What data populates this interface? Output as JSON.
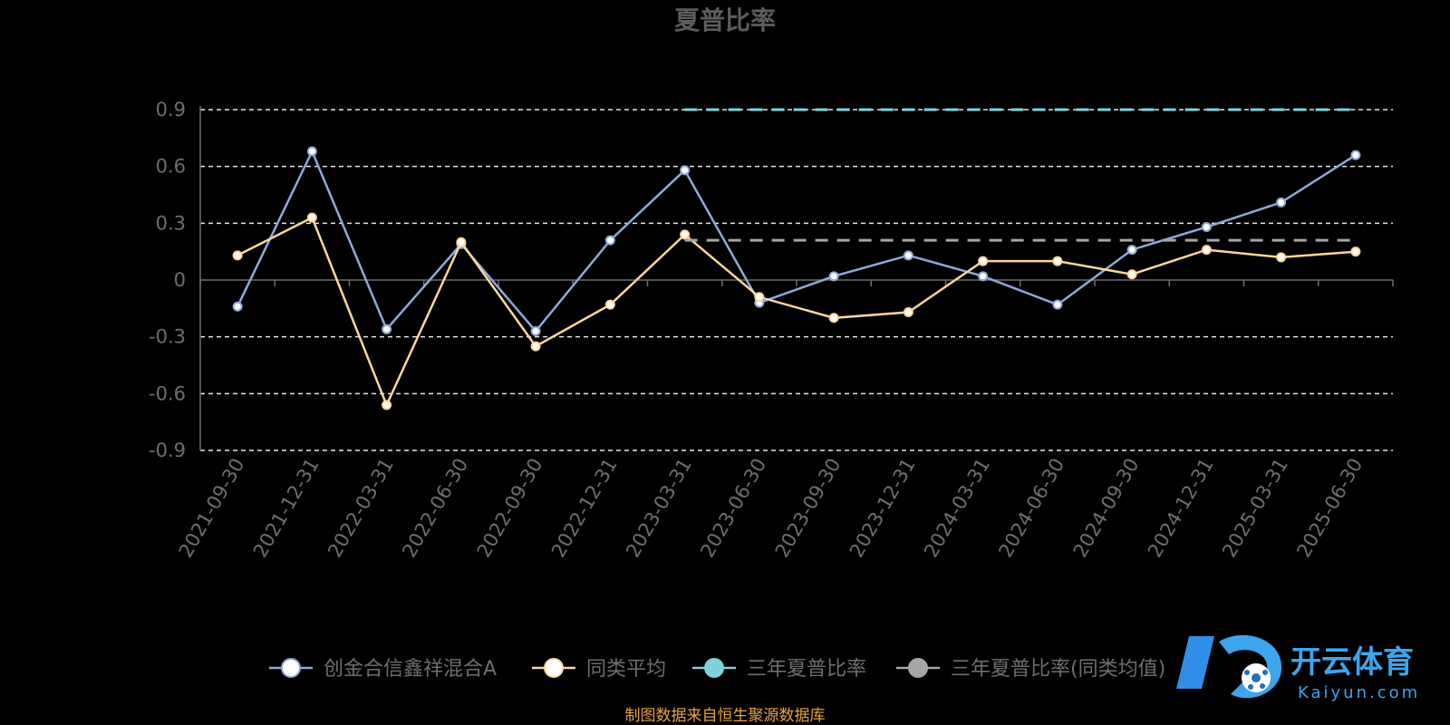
{
  "chart_data": {
    "type": "line",
    "title": "夏普比率",
    "x": [
      "2021-09-30",
      "2021-12-31",
      "2022-03-31",
      "2022-06-30",
      "2022-09-30",
      "2022-12-31",
      "2023-03-31",
      "2023-06-30",
      "2023-09-30",
      "2023-12-31",
      "2024-03-31",
      "2024-06-30",
      "2024-09-30",
      "2024-12-31",
      "2025-03-31",
      "2025-06-30"
    ],
    "y_ticks": [
      "0.9",
      "0.6",
      "0.3",
      "0",
      "-0.3",
      "-0.6",
      "-0.9"
    ],
    "ylim": [
      -0.9,
      0.9
    ],
    "grid": true,
    "legend_position": "bottom",
    "series": [
      {
        "name": "创金合信鑫祥混合A",
        "color": "#8fa9d9",
        "values": [
          -0.14,
          0.68,
          -0.26,
          0.19,
          -0.27,
          0.21,
          0.58,
          -0.12,
          0.02,
          0.13,
          0.02,
          -0.13,
          0.16,
          0.28,
          0.41,
          0.66
        ]
      },
      {
        "name": "同类平均",
        "color": "#fcd798",
        "values": [
          0.13,
          0.33,
          -0.66,
          0.2,
          -0.35,
          -0.13,
          0.24,
          -0.09,
          -0.2,
          -0.17,
          0.1,
          0.1,
          0.03,
          0.16,
          0.12,
          0.15
        ]
      },
      {
        "name": "三年夏普比率",
        "color": "#7fd1dd",
        "dashed": true,
        "values": [
          null,
          null,
          null,
          null,
          null,
          null,
          0.9,
          0.9,
          0.9,
          0.9,
          0.9,
          0.9,
          0.9,
          0.9,
          0.9,
          0.9
        ]
      },
      {
        "name": "三年夏普比率(同类均值)",
        "color": "#a6a6a6",
        "dashed": true,
        "values": [
          null,
          null,
          null,
          null,
          null,
          null,
          0.21,
          0.21,
          0.21,
          0.21,
          0.21,
          0.21,
          0.21,
          0.21,
          0.21,
          0.21
        ]
      }
    ]
  },
  "source_note": "制图数据来自恒生聚源数据库",
  "watermark": {
    "name": "开云体育",
    "sub": "Kaiyun.com"
  }
}
